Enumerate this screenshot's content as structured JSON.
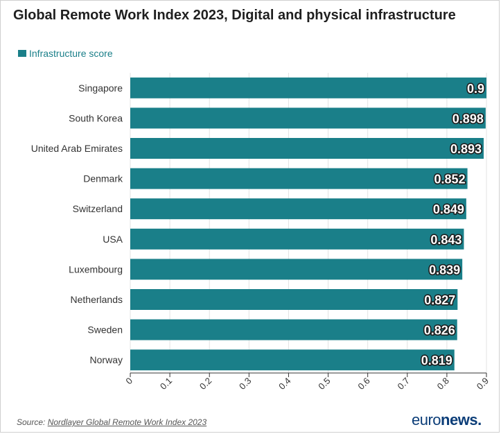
{
  "title": "Global Remote Work Index 2023, Digital and physical infrastructure",
  "legend": {
    "label": "Infrastructure score",
    "color": "#1a7f89"
  },
  "source": {
    "prefix": "Source: ",
    "link_text": "Nordlayer Global Remote Work Index 2023"
  },
  "logo": {
    "light": "euro",
    "bold": "news",
    "dot": "."
  },
  "chart_data": {
    "type": "bar",
    "orientation": "horizontal",
    "categories": [
      "Singapore",
      "South Korea",
      "United Arab Emirates",
      "Denmark",
      "Switzerland",
      "USA",
      "Luxembourg",
      "Netherlands",
      "Sweden",
      "Norway"
    ],
    "series": [
      {
        "name": "Infrastructure score",
        "values": [
          0.9,
          0.898,
          0.893,
          0.852,
          0.849,
          0.843,
          0.839,
          0.827,
          0.826,
          0.819
        ],
        "color": "#1a7f89"
      }
    ],
    "data_labels": [
      "0.9",
      "0.898",
      "0.893",
      "0.852",
      "0.849",
      "0.843",
      "0.839",
      "0.827",
      "0.826",
      "0.819"
    ],
    "xlim": [
      0,
      0.9
    ],
    "xticks": [
      0,
      0.1,
      0.2,
      0.3,
      0.4,
      0.5,
      0.6,
      0.7,
      0.8,
      0.9
    ],
    "xtick_labels": [
      "0",
      "0.1",
      "0.2",
      "0.3",
      "0.4",
      "0.5",
      "0.6",
      "0.7",
      "0.8",
      "0.9"
    ],
    "grid": true,
    "legend_position": "top-left"
  }
}
